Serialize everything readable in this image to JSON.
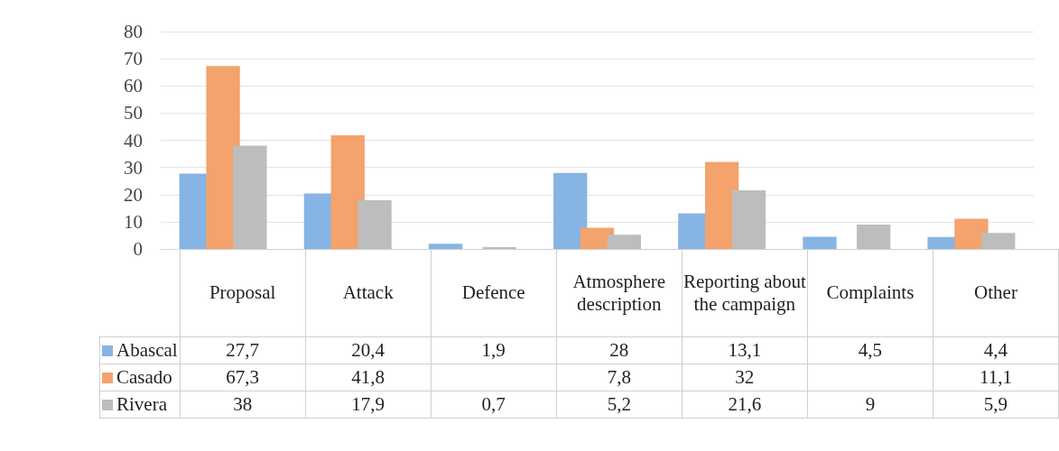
{
  "chart_data": {
    "type": "bar",
    "categories": [
      "Proposal",
      "Attack",
      "Defence",
      "Atmosphere description",
      "Reporting about the campaign",
      "Complaints",
      "Other"
    ],
    "series": [
      {
        "name": "Abascal",
        "color": "#86b4e4",
        "values": [
          27.7,
          20.4,
          1.9,
          28,
          13.1,
          4.5,
          4.4
        ],
        "value_labels": [
          "27,7",
          "20,4",
          "1,9",
          "28",
          "13,1",
          "4,5",
          "4,4"
        ]
      },
      {
        "name": "Casado",
        "color": "#f3a36b",
        "values": [
          67.3,
          41.8,
          null,
          7.8,
          32,
          null,
          11.1
        ],
        "value_labels": [
          "67,3",
          "41,8",
          null,
          "7,8",
          "32",
          null,
          "11,1"
        ]
      },
      {
        "name": "Rivera",
        "color": "#bdbdbd",
        "values": [
          38,
          17.9,
          0.7,
          5.2,
          21.6,
          9,
          5.9
        ],
        "value_labels": [
          "38",
          "17,9",
          "0,7",
          "5,2",
          "21,6",
          "9",
          "5,9"
        ]
      }
    ],
    "ylim": [
      0,
      80
    ],
    "yticks": [
      0,
      10,
      20,
      30,
      40,
      50,
      60,
      70,
      80
    ],
    "grid": "y",
    "legend": "bottom left"
  }
}
